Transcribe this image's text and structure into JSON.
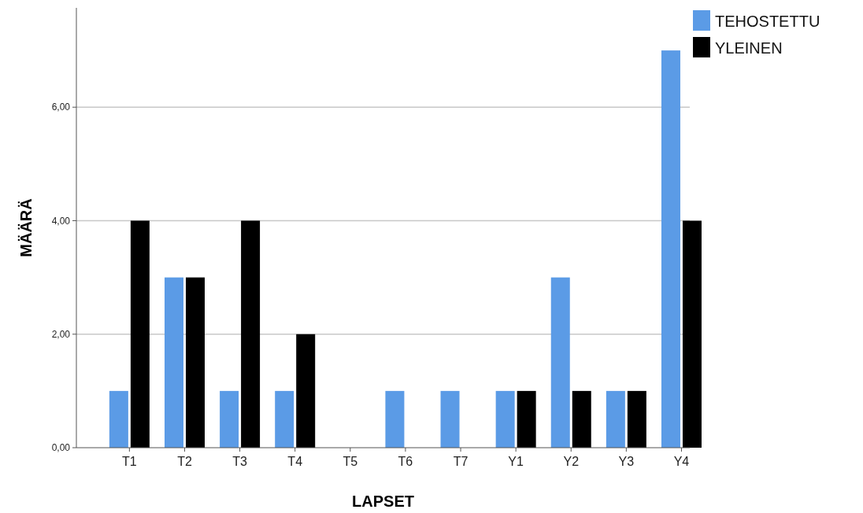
{
  "chart_data": {
    "type": "bar",
    "xlabel": "LAPSET",
    "ylabel": "MÄÄRÄ",
    "categories": [
      "T1",
      "T2",
      "T3",
      "T4",
      "T5",
      "T6",
      "T7",
      "Y1",
      "Y2",
      "Y3",
      "Y4"
    ],
    "series": [
      {
        "name": "TEHOSTETTU",
        "color": "#5b9be6",
        "values": [
          1,
          3,
          1,
          1,
          0,
          1,
          1,
          1,
          3,
          1,
          7
        ]
      },
      {
        "name": "YLEINEN",
        "color": "#000000",
        "values": [
          4,
          3,
          4,
          2,
          0,
          0,
          0,
          1,
          1,
          1,
          4
        ]
      }
    ],
    "ylim": [
      0,
      7.75
    ],
    "yticks": [
      {
        "value": 0,
        "label": "0,00"
      },
      {
        "value": 2,
        "label": "2,00"
      },
      {
        "value": 4,
        "label": "4,00"
      },
      {
        "value": 6,
        "label": "6,00"
      }
    ],
    "grid": "y",
    "legend": "top right"
  }
}
